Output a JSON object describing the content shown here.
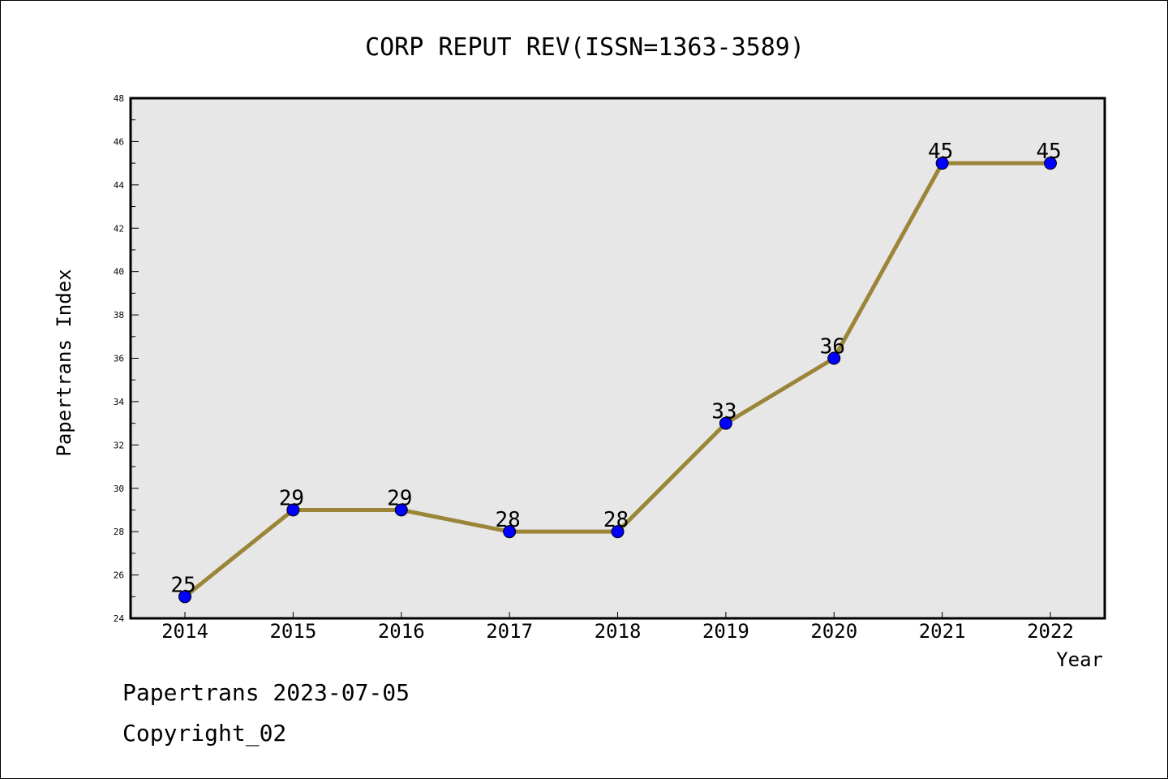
{
  "chart_data": {
    "type": "line",
    "title": "CORP REPUT REV(ISSN=1363-3589)",
    "xlabel": "Year",
    "ylabel": "Papertrans Index",
    "categories": [
      "2014",
      "2015",
      "2016",
      "2017",
      "2018",
      "2019",
      "2020",
      "2021",
      "2022"
    ],
    "series": [
      {
        "values": [
          25,
          29,
          29,
          28,
          28,
          33,
          36,
          45,
          45
        ]
      }
    ],
    "data_labels": [
      "25",
      "29",
      "29",
      "28",
      "28",
      "33",
      "36",
      "45",
      "45"
    ],
    "ylim": [
      24,
      48
    ],
    "y_ticks": [
      "24",
      "26",
      "28",
      "30",
      "32",
      "34",
      "36",
      "38",
      "40",
      "42",
      "44",
      "46",
      "48"
    ],
    "grid": false,
    "colors": {
      "line": "#9b8539",
      "marker": "#0000ff",
      "plot_background": "#e7e7e7"
    }
  },
  "footer": {
    "date_text": "Papertrans 2023-07-05",
    "copyright_text": "Copyright_02"
  }
}
